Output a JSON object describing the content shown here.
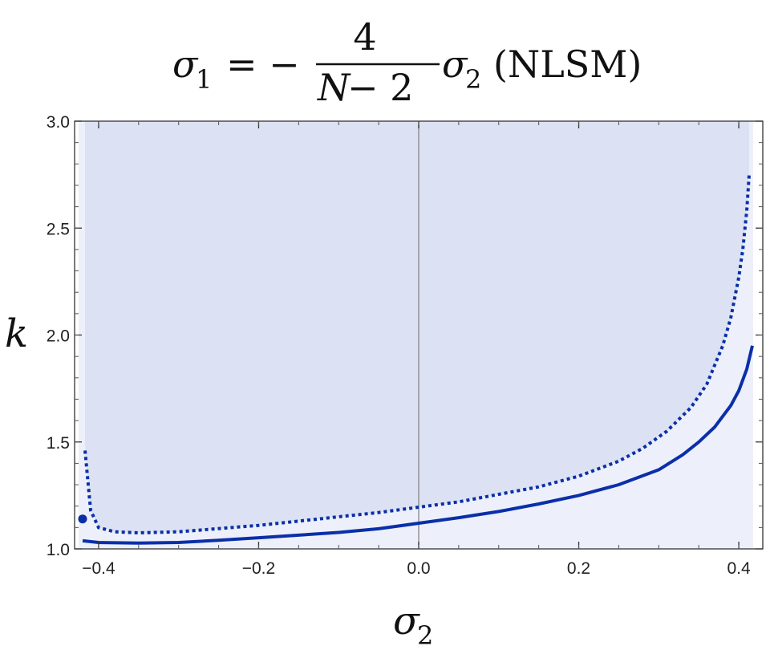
{
  "chart_data": {
    "type": "line",
    "title": {
      "lhs_symbol": "σ",
      "lhs_sub": "1",
      "equals": "= −",
      "numerator": "4",
      "denominator_var": "N",
      "denominator_rest": " − 2",
      "rhs_symbol": "σ",
      "rhs_sub": "2",
      "suffix": "(NLSM)"
    },
    "xlabel": {
      "symbol": "σ",
      "sub": "2"
    },
    "ylabel": "k",
    "xlim": [
      -0.43,
      0.43
    ],
    "ylim": [
      1.0,
      3.0
    ],
    "x_ticks": [
      -0.4,
      -0.2,
      0.0,
      0.2,
      0.4
    ],
    "x_tick_labels": [
      "−0.4",
      "−0.2",
      "0.0",
      "0.2",
      "0.4"
    ],
    "y_ticks": [
      1.0,
      1.5,
      2.0,
      2.5,
      3.0
    ],
    "y_tick_labels": [
      "1.0",
      "1.5",
      "2.0",
      "2.5",
      "3.0"
    ],
    "grid": false,
    "shaded_region": {
      "color": "#dce1f3",
      "x_range": [
        -0.418,
        0.412
      ],
      "lower_boundary": "dotted-series",
      "upper": 3.0
    },
    "light_region": {
      "color": "#edf0fa",
      "x_range": [
        -0.425,
        0.418
      ],
      "upper": 3.0
    },
    "series": [
      {
        "style": "solid",
        "color": "#0a2fa8",
        "x": [
          -0.42,
          -0.4,
          -0.35,
          -0.3,
          -0.25,
          -0.2,
          -0.15,
          -0.1,
          -0.05,
          0.0,
          0.05,
          0.1,
          0.15,
          0.2,
          0.25,
          0.3,
          0.33,
          0.35,
          0.37,
          0.39,
          0.4,
          0.41,
          0.417
        ],
        "y": [
          1.038,
          1.03,
          1.027,
          1.03,
          1.04,
          1.052,
          1.064,
          1.077,
          1.094,
          1.12,
          1.146,
          1.175,
          1.21,
          1.25,
          1.3,
          1.37,
          1.44,
          1.5,
          1.57,
          1.67,
          1.74,
          1.84,
          1.95
        ]
      },
      {
        "style": "dotted",
        "color": "#0a2fa8",
        "x": [
          -0.417,
          -0.41,
          -0.4,
          -0.38,
          -0.35,
          -0.3,
          -0.25,
          -0.2,
          -0.15,
          -0.1,
          -0.05,
          0.0,
          0.05,
          0.1,
          0.15,
          0.2,
          0.25,
          0.28,
          0.31,
          0.34,
          0.36,
          0.38,
          0.39,
          0.4,
          0.405,
          0.41,
          0.413
        ],
        "y": [
          1.46,
          1.18,
          1.1,
          1.08,
          1.075,
          1.08,
          1.095,
          1.11,
          1.13,
          1.15,
          1.17,
          1.195,
          1.22,
          1.255,
          1.29,
          1.34,
          1.41,
          1.47,
          1.55,
          1.66,
          1.77,
          1.95,
          2.08,
          2.27,
          2.4,
          2.58,
          2.75
        ]
      }
    ],
    "points": [
      {
        "x": -0.42,
        "y": 1.14,
        "color": "#0a2fa8"
      }
    ],
    "vertical_reference": {
      "x": 0.0,
      "color": "#888888"
    }
  }
}
